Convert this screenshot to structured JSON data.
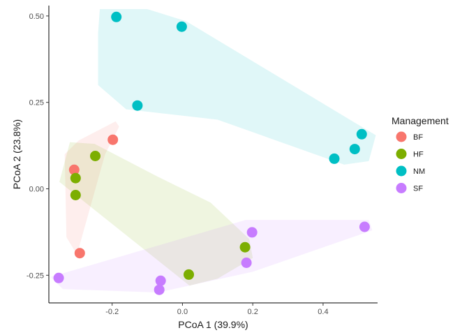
{
  "chart_data": {
    "type": "scatter",
    "title": "",
    "xlabel": "PCoA 1 (39.9%)",
    "ylabel": "PCoA 2 (23.8%)",
    "xlim": [
      -0.38,
      0.555
    ],
    "ylim": [
      -0.33,
      0.53
    ],
    "xticks": [
      -0.2,
      0.0,
      0.2,
      0.4
    ],
    "xtick_labels": [
      "-0.2",
      "0.0",
      "0.2",
      "0.4"
    ],
    "yticks": [
      -0.25,
      0.0,
      0.25,
      0.5
    ],
    "ytick_labels": [
      "-0.25",
      "0.00",
      "0.25",
      "0.50"
    ],
    "grid": false,
    "legend": {
      "title": "Management",
      "position": "right"
    },
    "series": [
      {
        "name": "BF",
        "color": "#F8766D",
        "points": [
          [
            -0.198,
            0.142
          ],
          [
            -0.308,
            0.055
          ],
          [
            -0.292,
            -0.186
          ]
        ]
      },
      {
        "name": "HF",
        "color": "#7CAE00",
        "points": [
          [
            -0.248,
            0.095
          ],
          [
            -0.304,
            0.031
          ],
          [
            -0.304,
            -0.018
          ],
          [
            0.178,
            -0.169
          ],
          [
            0.018,
            -0.248
          ]
        ]
      },
      {
        "name": "NM",
        "color": "#00BFC4",
        "points": [
          [
            -0.188,
            0.497
          ],
          [
            -0.002,
            0.469
          ],
          [
            -0.128,
            0.241
          ],
          [
            0.51,
            0.158
          ],
          [
            0.49,
            0.115
          ],
          [
            0.432,
            0.087
          ]
        ]
      },
      {
        "name": "SF",
        "color": "#C77CFF",
        "points": [
          [
            0.198,
            -0.126
          ],
          [
            0.518,
            -0.11
          ],
          [
            0.182,
            -0.214
          ],
          [
            -0.352,
            -0.258
          ],
          [
            -0.062,
            -0.266
          ],
          [
            -0.066,
            -0.292
          ]
        ]
      }
    ],
    "hulls": [
      {
        "name": "BF",
        "color": "#F8766D",
        "points": [
          [
            -0.19,
            0.195
          ],
          [
            -0.18,
            0.18
          ],
          [
            -0.22,
            0.1
          ],
          [
            -0.3,
            -0.19
          ],
          [
            -0.33,
            -0.14
          ],
          [
            -0.335,
            0.1
          ],
          [
            -0.295,
            0.14
          ]
        ]
      },
      {
        "name": "HF",
        "color": "#7CAE00",
        "points": [
          [
            -0.32,
            0.135
          ],
          [
            -0.25,
            0.13
          ],
          [
            -0.07,
            0.035
          ],
          [
            0.08,
            -0.04
          ],
          [
            0.19,
            -0.145
          ],
          [
            0.2,
            -0.2
          ],
          [
            0.1,
            -0.26
          ],
          [
            0.02,
            -0.28
          ],
          [
            -0.35,
            0.02
          ]
        ]
      },
      {
        "name": "NM",
        "color": "#00BFC4",
        "points": [
          [
            -0.235,
            0.52
          ],
          [
            -0.1,
            0.52
          ],
          [
            0.01,
            0.485
          ],
          [
            0.55,
            0.155
          ],
          [
            0.53,
            0.08
          ],
          [
            0.46,
            0.07
          ],
          [
            0.1,
            0.2
          ],
          [
            -0.16,
            0.23
          ],
          [
            -0.24,
            0.3
          ],
          [
            -0.24,
            0.45
          ]
        ]
      },
      {
        "name": "SF",
        "color": "#C77CFF",
        "points": [
          [
            -0.375,
            -0.255
          ],
          [
            0.18,
            -0.09
          ],
          [
            0.53,
            -0.09
          ],
          [
            0.54,
            -0.12
          ],
          [
            0.2,
            -0.24
          ],
          [
            -0.07,
            -0.3
          ],
          [
            -0.34,
            -0.29
          ]
        ]
      }
    ]
  }
}
